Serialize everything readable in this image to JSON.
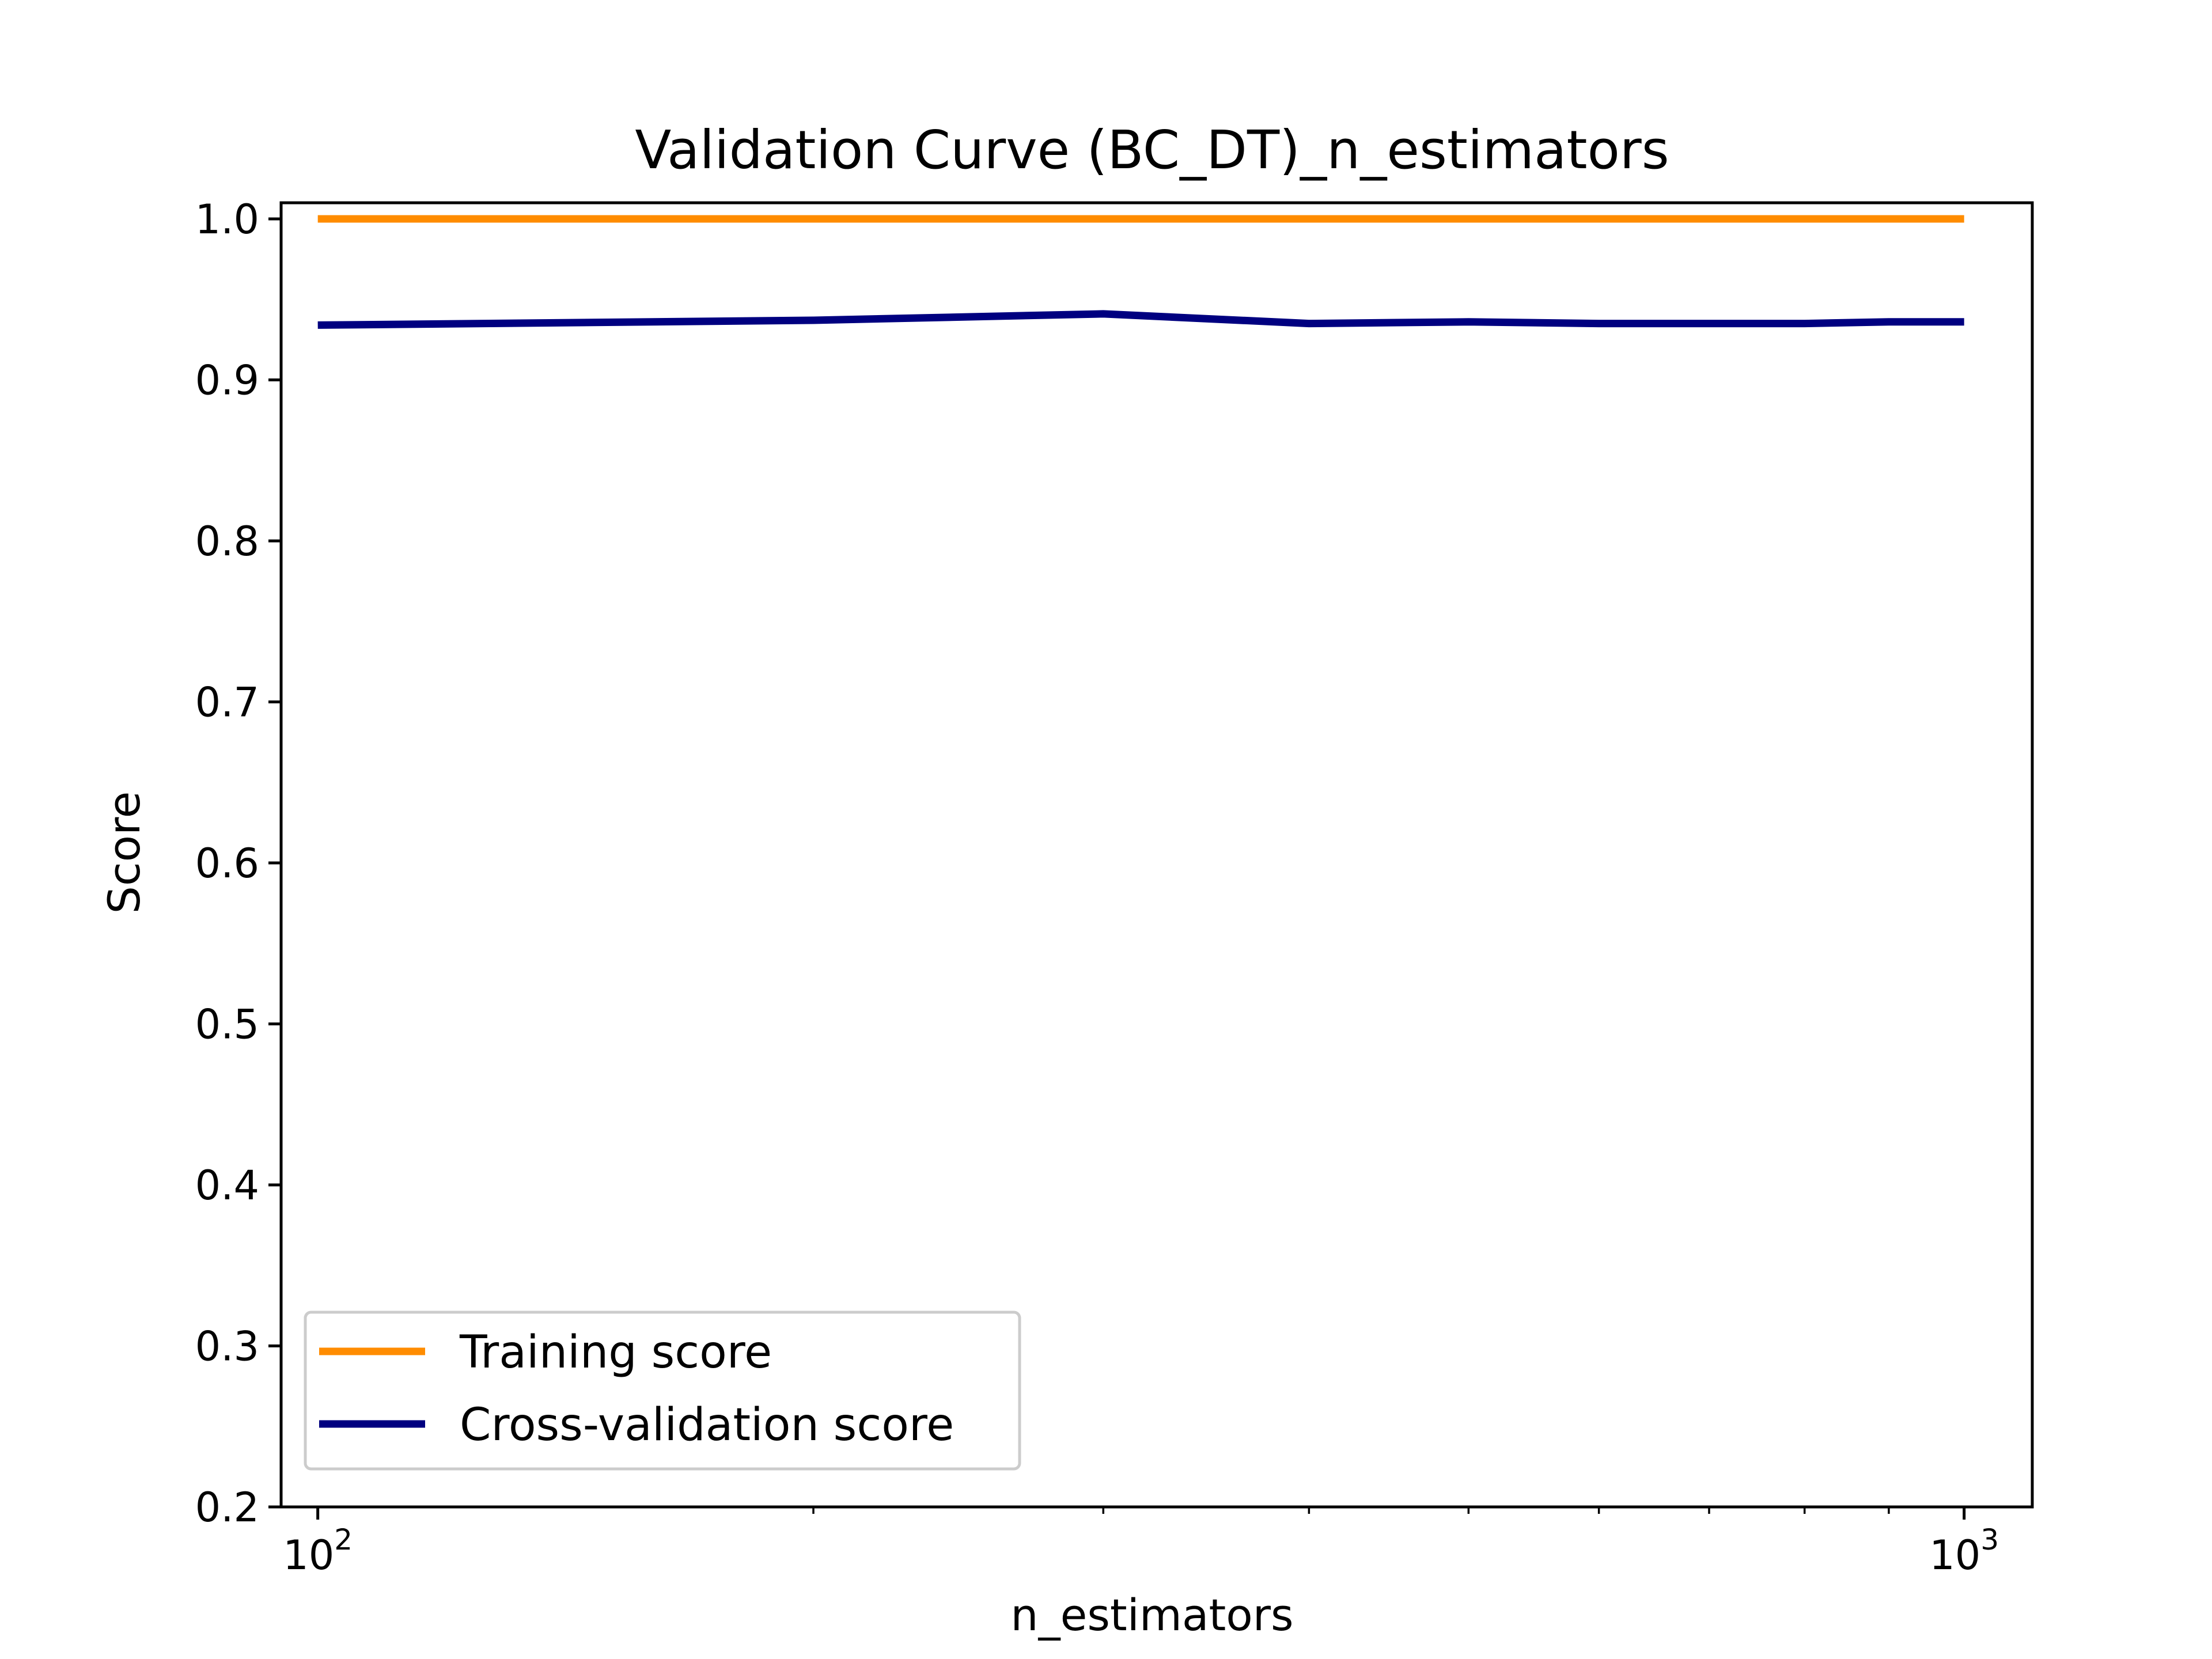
{
  "chart_data": {
    "type": "line",
    "title": "Validation Curve (BC_DT)_n_estimators",
    "xlabel": "n_estimators",
    "ylabel": "Score",
    "xscale": "log",
    "xlim": [
      95,
      1100
    ],
    "ylim": [
      0.2,
      1.01
    ],
    "x_ticks": [
      {
        "value": 100,
        "base": "10",
        "exp": "2"
      },
      {
        "value": 1000,
        "base": "10",
        "exp": "3"
      }
    ],
    "y_ticks": [
      "0.2",
      "0.3",
      "0.4",
      "0.5",
      "0.6",
      "0.7",
      "0.8",
      "0.9",
      "1.0"
    ],
    "x": [
      100,
      200,
      300,
      400,
      500,
      600,
      700,
      800,
      900,
      1000
    ],
    "series": [
      {
        "name": "Training score",
        "color": "#ff8c00",
        "values": [
          1.0,
          1.0,
          1.0,
          1.0,
          1.0,
          1.0,
          1.0,
          1.0,
          1.0,
          1.0
        ]
      },
      {
        "name": "Cross-validation score",
        "color": "#000080",
        "values": [
          0.934,
          0.937,
          0.941,
          0.935,
          0.936,
          0.935,
          0.935,
          0.935,
          0.936,
          0.936
        ]
      }
    ],
    "legend": {
      "position": "lower-left"
    },
    "grid": false
  }
}
